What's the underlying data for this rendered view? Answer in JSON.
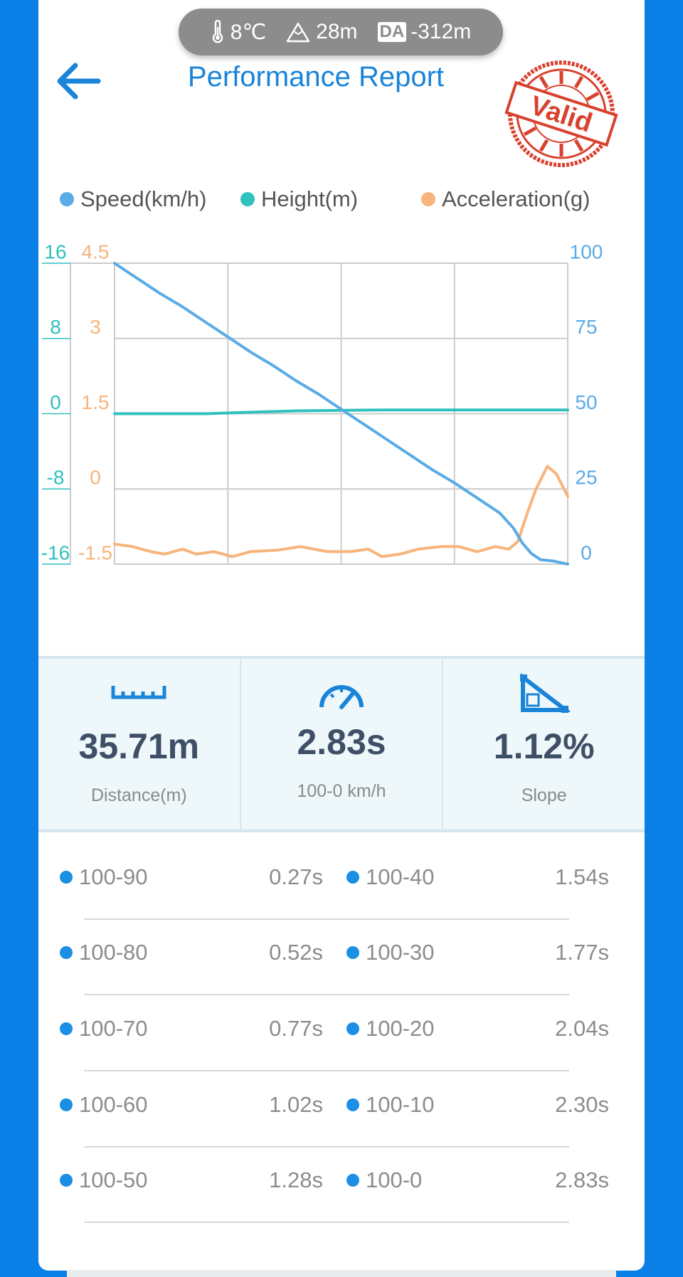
{
  "env": {
    "temperature": "8℃",
    "altitude": "28m",
    "da_badge": "DA",
    "density_altitude": "-312m"
  },
  "header": {
    "title": "Performance Report",
    "stamp_text": "Valid",
    "stamp_color": "#d9412e"
  },
  "chart_data": {
    "type": "line",
    "legend": [
      "Speed(km/h)",
      "Height(m)",
      "Acceleration(g)"
    ],
    "colors": {
      "speed": "#5aabe6",
      "height": "#2fc1bd",
      "acceleration": "#f7b47c",
      "grid": "#cccccc"
    },
    "axes": {
      "height": {
        "ticks": [
          "16",
          "8",
          "0",
          "-8",
          "-16"
        ],
        "range": [
          -16,
          16
        ]
      },
      "acceleration": {
        "ticks": [
          "4.5",
          "3",
          "1.5",
          "0",
          "-1.5"
        ],
        "range": [
          -1.5,
          4.5
        ]
      },
      "speed": {
        "ticks": [
          "100",
          "75",
          "50",
          "25",
          "0"
        ],
        "range": [
          0,
          100
        ]
      }
    },
    "x_range": [
      0,
      1
    ],
    "grid": true,
    "series": [
      {
        "name": "Speed(km/h)",
        "points": [
          [
            0,
            100
          ],
          [
            0.05,
            95
          ],
          [
            0.1,
            90
          ],
          [
            0.15,
            85.5
          ],
          [
            0.2,
            80.5
          ],
          [
            0.25,
            75.5
          ],
          [
            0.3,
            70.5
          ],
          [
            0.35,
            66
          ],
          [
            0.4,
            61
          ],
          [
            0.45,
            56.5
          ],
          [
            0.5,
            51.5
          ],
          [
            0.55,
            46.5
          ],
          [
            0.6,
            41.5
          ],
          [
            0.65,
            36.5
          ],
          [
            0.7,
            31.5
          ],
          [
            0.75,
            27
          ],
          [
            0.8,
            22
          ],
          [
            0.85,
            17
          ],
          [
            0.88,
            12
          ],
          [
            0.9,
            7
          ],
          [
            0.92,
            3.5
          ],
          [
            0.94,
            1.5
          ],
          [
            0.97,
            1
          ],
          [
            1.0,
            0
          ]
        ]
      },
      {
        "name": "Height(m)",
        "points": [
          [
            0,
            0
          ],
          [
            0.2,
            0
          ],
          [
            0.4,
            0.3
          ],
          [
            0.6,
            0.4
          ],
          [
            0.8,
            0.4
          ],
          [
            1.0,
            0.4
          ]
        ]
      },
      {
        "name": "Acceleration(g)",
        "points": [
          [
            0,
            -1.1
          ],
          [
            0.04,
            -1.15
          ],
          [
            0.08,
            -1.25
          ],
          [
            0.11,
            -1.3
          ],
          [
            0.15,
            -1.2
          ],
          [
            0.18,
            -1.3
          ],
          [
            0.22,
            -1.25
          ],
          [
            0.26,
            -1.35
          ],
          [
            0.3,
            -1.25
          ],
          [
            0.36,
            -1.22
          ],
          [
            0.41,
            -1.15
          ],
          [
            0.47,
            -1.25
          ],
          [
            0.52,
            -1.25
          ],
          [
            0.56,
            -1.2
          ],
          [
            0.59,
            -1.35
          ],
          [
            0.63,
            -1.3
          ],
          [
            0.67,
            -1.2
          ],
          [
            0.72,
            -1.15
          ],
          [
            0.76,
            -1.15
          ],
          [
            0.8,
            -1.25
          ],
          [
            0.84,
            -1.15
          ],
          [
            0.87,
            -1.2
          ],
          [
            0.89,
            -1.05
          ],
          [
            0.91,
            -0.5
          ],
          [
            0.93,
            0.0
          ],
          [
            0.955,
            0.45
          ],
          [
            0.975,
            0.3
          ],
          [
            1.0,
            -0.15
          ]
        ]
      }
    ]
  },
  "stats": {
    "distance_value": "35.71m",
    "distance_label": "Distance(m)",
    "time_value": "2.83s",
    "time_label": "100-0 km/h",
    "slope_value": "1.12%",
    "slope_label": "Slope"
  },
  "splits": [
    {
      "left_label": "100-90",
      "left_time": "0.27s",
      "right_label": "100-40",
      "right_time": "1.54s"
    },
    {
      "left_label": "100-80",
      "left_time": "0.52s",
      "right_label": "100-30",
      "right_time": "1.77s"
    },
    {
      "left_label": "100-70",
      "left_time": "0.77s",
      "right_label": "100-20",
      "right_time": "2.04s"
    },
    {
      "left_label": "100-60",
      "left_time": "1.02s",
      "right_label": "100-10",
      "right_time": "2.30s"
    },
    {
      "left_label": "100-50",
      "left_time": "1.28s",
      "right_label": "100-0",
      "right_time": "2.83s"
    }
  ]
}
